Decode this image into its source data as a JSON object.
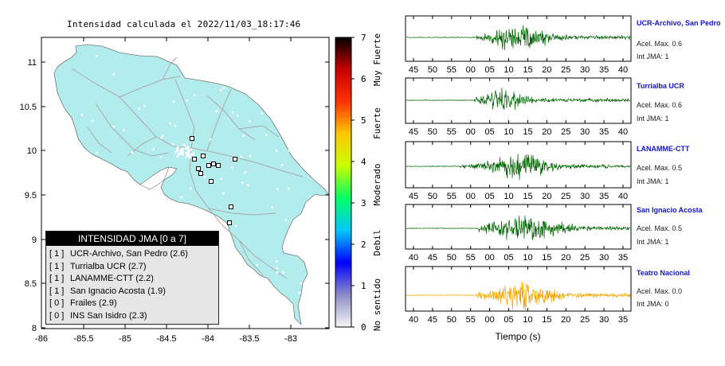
{
  "map": {
    "title": "Intensidad calculada el 2022/11/03_18:17:46",
    "lon_ticks": [
      "-86",
      "-85.5",
      "-85",
      "-84.5",
      "-84",
      "-83.5",
      "-83"
    ],
    "lat_ticks": [
      "11",
      "10.5",
      "10",
      "9.5",
      "9",
      "8.5",
      "8"
    ],
    "land_color": "#b3ecec",
    "stations_count": 6
  },
  "legend": {
    "title": "INTENSIDAD JMA [0 a 7]",
    "rows": [
      {
        "prefix": "[ 1 ]",
        "text": "UCR-Archivo, San Pedro (2.6)"
      },
      {
        "prefix": "[ 1 ]",
        "text": "Turrialba UCR (2.7)"
      },
      {
        "prefix": "[ 1 ]",
        "text": "LANAMME-CTT (2.2)"
      },
      {
        "prefix": "[ 1 ]",
        "text": "San Ignacio Acosta (1.9)"
      },
      {
        "prefix": "[ 0 ]",
        "text": "Frailes (2.9)"
      },
      {
        "prefix": "[ 0 ]",
        "text": "INS San Isidro (2.3)"
      }
    ]
  },
  "colorbar": {
    "ticks": [
      "7",
      "6",
      "5",
      "4",
      "3",
      "2",
      "1",
      "0"
    ],
    "labels": [
      "Muy Fuerte",
      "Fuerte",
      "Moderado",
      "Debil",
      "No sentido"
    ],
    "colors": [
      "#f5f5f5",
      "#8c8cc8",
      "#0000ff",
      "#00c8ff",
      "#00ff64",
      "#c8ff00",
      "#ffc800",
      "#ff3200",
      "#c80000",
      "#000000"
    ]
  },
  "chart_data": {
    "type": "line",
    "xlabel": "Tiempo (s)",
    "panels": [
      {
        "station": "UCR-Archivo, San Pedro",
        "accel_label": "Acel. Max. 0.6",
        "int_label": "Int JMA: 1",
        "ticks": [
          "45",
          "50",
          "55",
          "00",
          "05",
          "10",
          "15",
          "20",
          "25",
          "30",
          "35",
          "40"
        ],
        "color": "#006400"
      },
      {
        "station": "Turrialba UCR",
        "accel_label": "Acel. Max. 0.6",
        "int_label": "Int JMA: 1",
        "ticks": [
          "45",
          "50",
          "55",
          "00",
          "05",
          "10",
          "15",
          "20",
          "25",
          "30",
          "35",
          "40"
        ],
        "color": "#006400"
      },
      {
        "station": "LANAMME-CTT",
        "accel_label": "Acel. Max. 0.5",
        "int_label": "Int JMA: 1",
        "ticks": [
          "45",
          "50",
          "55",
          "00",
          "05",
          "10",
          "15",
          "20",
          "25",
          "30",
          "35",
          "40"
        ],
        "color": "#006400"
      },
      {
        "station": "San Ignacio Acosta",
        "accel_label": "Acel. Max. 0.5",
        "int_label": "Int JMA: 1",
        "ticks": [
          "40",
          "45",
          "50",
          "55",
          "00",
          "05",
          "10",
          "15",
          "20",
          "25",
          "30",
          "35"
        ],
        "color": "#006400"
      },
      {
        "station": "Teatro Nacional",
        "accel_label": "Acel. Max. 0.0",
        "int_label": "Int JMA: 0",
        "ticks": [
          "40",
          "45",
          "50",
          "55",
          "00",
          "05",
          "10",
          "15",
          "20",
          "25",
          "30",
          "35"
        ],
        "color": "#f5a500"
      }
    ]
  }
}
